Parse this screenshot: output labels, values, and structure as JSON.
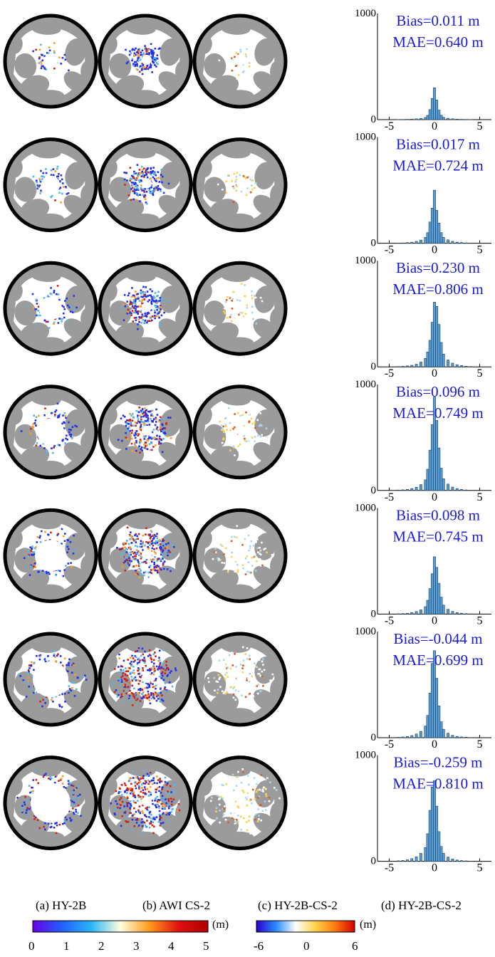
{
  "figure": {
    "column_labels": [
      "(a) HY-2B",
      "(b) AWI CS-2",
      "(c) HY-2B-CS-2",
      "(d) HY-2B-CS-2"
    ],
    "colorbar_thickness": {
      "unit": "(m)",
      "ticks": [
        "0",
        "1",
        "2",
        "3",
        "4",
        "5"
      ],
      "range": [
        0,
        5
      ],
      "colors": [
        "#6a00e6",
        "#2060ff",
        "#29b6f6",
        "#ffffe0",
        "#ff9a1a",
        "#e01010",
        "#b00000"
      ]
    },
    "colorbar_difference": {
      "unit": "(m)",
      "ticks": [
        "-6",
        "0",
        "6"
      ],
      "range": [
        -6,
        6
      ],
      "colors": [
        "#2a00cc",
        "#2a8cff",
        "#ffffff",
        "#ffd24a",
        "#ff7a10",
        "#d40000"
      ]
    },
    "colors": {
      "land": "#9b9b9b",
      "ocean": "#ffffff",
      "ring": "#000000",
      "stat_text": "#1a1ad6",
      "bar": "#5aa0d8",
      "low": "#2430e8",
      "mid": "#55b6e8",
      "high": "#ff9a20",
      "peak": "#d42010"
    }
  },
  "chart_data": [
    {
      "type": "bar",
      "row": 1,
      "y_max_label": "1000",
      "y_min_label": "0",
      "x_ticks": [
        "-5",
        "0",
        "5"
      ],
      "ylim": [
        0,
        1000
      ],
      "xlim": [
        -6.3,
        6.3
      ],
      "annotations": [
        "Bias=0.011 m",
        "MAE=0.640 m"
      ],
      "bins": [
        -4,
        -3.5,
        -3,
        -2.5,
        -2,
        -1.5,
        -1,
        -0.75,
        -0.5,
        -0.25,
        0,
        0.25,
        0.5,
        0.75,
        1,
        1.5,
        2,
        2.5,
        3,
        3.5,
        4
      ],
      "values": [
        1,
        2,
        3,
        5,
        8,
        12,
        20,
        40,
        95,
        200,
        300,
        185,
        90,
        42,
        22,
        12,
        8,
        5,
        3,
        2,
        1
      ]
    },
    {
      "type": "bar",
      "row": 2,
      "y_max_label": "1000",
      "y_min_label": "0",
      "x_ticks": [
        "-5",
        "0",
        "5"
      ],
      "ylim": [
        0,
        1000
      ],
      "xlim": [
        -6.3,
        6.3
      ],
      "annotations": [
        "Bias=0.017 m",
        "MAE=0.724 m"
      ],
      "bins": [
        -4,
        -3.5,
        -3,
        -2.5,
        -2,
        -1.5,
        -1,
        -0.75,
        -0.5,
        -0.25,
        0,
        0.25,
        0.5,
        0.75,
        1,
        1.5,
        2,
        2.5,
        3,
        3.5,
        4
      ],
      "values": [
        2,
        3,
        6,
        10,
        18,
        30,
        55,
        100,
        200,
        330,
        500,
        310,
        190,
        100,
        55,
        32,
        18,
        10,
        6,
        3,
        2
      ]
    },
    {
      "type": "bar",
      "row": 3,
      "y_max_label": "1000",
      "y_min_label": "0",
      "x_ticks": [
        "-5",
        "0",
        "5"
      ],
      "ylim": [
        0,
        1000
      ],
      "xlim": [
        -6.3,
        6.3
      ],
      "annotations": [
        "Bias=0.230 m",
        "MAE=0.806 m"
      ],
      "bins": [
        -4,
        -3.5,
        -3,
        -2.5,
        -2,
        -1.5,
        -1,
        -0.75,
        -0.5,
        -0.25,
        0,
        0.25,
        0.5,
        0.75,
        1,
        1.5,
        2,
        2.5,
        3,
        3.5,
        4
      ],
      "values": [
        3,
        5,
        9,
        15,
        25,
        45,
        80,
        140,
        250,
        420,
        610,
        570,
        400,
        230,
        120,
        65,
        35,
        20,
        12,
        6,
        3
      ]
    },
    {
      "type": "bar",
      "row": 4,
      "y_max_label": "1000",
      "y_min_label": "0",
      "x_ticks": [
        "-5",
        "0",
        "5"
      ],
      "ylim": [
        0,
        1000
      ],
      "xlim": [
        -6.3,
        6.3
      ],
      "annotations": [
        "Bias=0.096 m",
        "MAE=0.749 m"
      ],
      "bins": [
        -4,
        -3.5,
        -3,
        -2.5,
        -2,
        -1.5,
        -1,
        -0.75,
        -0.5,
        -0.25,
        0,
        0.25,
        0.5,
        0.75,
        1,
        1.5,
        2,
        2.5,
        3,
        3.5,
        4
      ],
      "values": [
        4,
        6,
        10,
        18,
        30,
        55,
        100,
        200,
        380,
        620,
        880,
        660,
        400,
        210,
        110,
        60,
        32,
        18,
        10,
        5,
        3
      ]
    },
    {
      "type": "bar",
      "row": 5,
      "y_max_label": "1000",
      "y_min_label": "0",
      "x_ticks": [
        "-5",
        "0",
        "5"
      ],
      "ylim": [
        0,
        1000
      ],
      "xlim": [
        -6.3,
        6.3
      ],
      "annotations": [
        "Bias=0.098 m",
        "MAE=0.745 m"
      ],
      "bins": [
        -4,
        -3.5,
        -3,
        -2.5,
        -2,
        -1.5,
        -1,
        -0.75,
        -0.5,
        -0.25,
        0,
        0.25,
        0.5,
        0.75,
        1,
        1.5,
        2,
        2.5,
        3,
        3.5,
        4
      ],
      "values": [
        3,
        5,
        8,
        14,
        24,
        40,
        70,
        130,
        240,
        380,
        540,
        440,
        290,
        160,
        85,
        45,
        25,
        14,
        8,
        4,
        2
      ]
    },
    {
      "type": "bar",
      "row": 6,
      "y_max_label": "1000",
      "y_min_label": "0",
      "x_ticks": [
        "-5",
        "0",
        "5"
      ],
      "ylim": [
        0,
        1000
      ],
      "xlim": [
        -6.3,
        6.3
      ],
      "annotations": [
        "Bias=-0.044 m",
        "MAE=0.699 m"
      ],
      "bins": [
        -4,
        -3.5,
        -3,
        -2.5,
        -2,
        -1.5,
        -1,
        -0.75,
        -0.5,
        -0.25,
        0,
        0.25,
        0.5,
        0.75,
        1,
        1.5,
        2,
        2.5,
        3,
        3.5,
        4
      ],
      "values": [
        4,
        7,
        12,
        20,
        35,
        60,
        110,
        210,
        420,
        700,
        820,
        560,
        300,
        150,
        80,
        42,
        22,
        12,
        7,
        4,
        2
      ]
    },
    {
      "type": "bar",
      "row": 7,
      "y_max_label": "1000",
      "y_min_label": "0",
      "x_ticks": [
        "-5",
        "0",
        "5"
      ],
      "ylim": [
        0,
        1000
      ],
      "xlim": [
        -6.3,
        6.3
      ],
      "annotations": [
        "Bias=-0.259 m",
        "MAE=0.810 m"
      ],
      "bins": [
        -4,
        -3.5,
        -3,
        -2.5,
        -2,
        -1.5,
        -1,
        -0.75,
        -0.5,
        -0.25,
        0,
        0.25,
        0.5,
        0.75,
        1,
        1.5,
        2,
        2.5,
        3,
        3.5,
        4
      ],
      "values": [
        5,
        8,
        14,
        25,
        42,
        75,
        130,
        260,
        480,
        700,
        760,
        520,
        280,
        140,
        75,
        40,
        22,
        12,
        7,
        4,
        2
      ]
    }
  ]
}
